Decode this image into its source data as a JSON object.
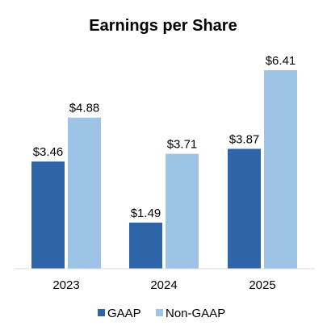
{
  "chart_data": {
    "type": "bar",
    "title": "Earnings per Share",
    "categories": [
      "2023",
      "2024",
      "2025"
    ],
    "series": [
      {
        "name": "GAAP",
        "values": [
          3.46,
          1.49,
          3.87
        ],
        "labels": [
          "$3.46",
          "$1.49",
          "$3.87"
        ],
        "color": "#2e65a8"
      },
      {
        "name": "Non-GAAP",
        "values": [
          4.88,
          3.71,
          6.41
        ],
        "labels": [
          "$4.88",
          "$3.71",
          "$6.41"
        ],
        "color": "#9dc3e6"
      }
    ],
    "ylim": [
      0,
      6.41
    ],
    "grid": false,
    "legend_position": "bottom"
  }
}
